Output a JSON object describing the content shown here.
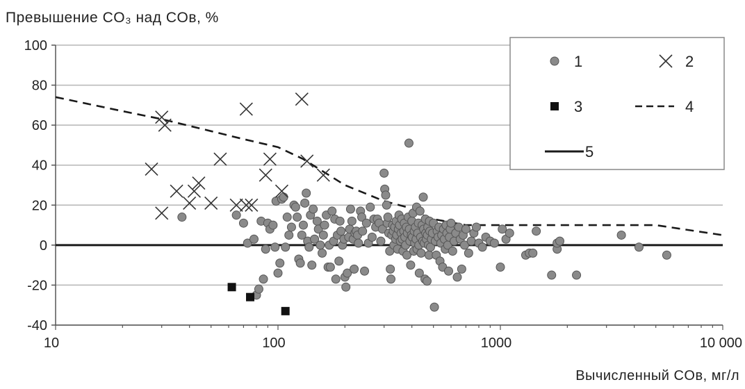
{
  "chart_data": {
    "type": "scatter",
    "title": "Превышение CO₃ над COв, %",
    "xlabel": "Вычисленный COв, мг/л",
    "ylabel": "Превышение CO₃ над COв, %",
    "xscale": "log",
    "xlim": [
      10,
      10000
    ],
    "ylim": [
      -40,
      100
    ],
    "x_tick_labels": [
      "10",
      "100",
      "1000",
      "10 000"
    ],
    "x_ticks": [
      10,
      100,
      1000,
      10000
    ],
    "y_ticks": [
      -40,
      -20,
      0,
      20,
      40,
      60,
      80,
      100
    ],
    "y_tick_labels": [
      "-40",
      "-20",
      "0",
      "20",
      "40",
      "60",
      "80",
      "100"
    ],
    "grid": "horizontal",
    "legend_position": "top-right",
    "legend": [
      {
        "key": "1",
        "label": "1",
        "marker": "circle"
      },
      {
        "key": "2",
        "label": "2",
        "marker": "x"
      },
      {
        "key": "3",
        "label": "3",
        "marker": "square"
      },
      {
        "key": "4",
        "label": "4",
        "marker": "dashed-line"
      },
      {
        "key": "5",
        "label": "5",
        "marker": "solid-line"
      }
    ],
    "colors": {
      "circle_fill": "#8a8a8a",
      "circle_stroke": "#555555",
      "square": "#111111",
      "line": "#1a1a1a",
      "grid": "#b5b5b5"
    },
    "series": [
      {
        "key": "1",
        "marker": "circle",
        "points": [
          [
            37,
            14
          ],
          [
            65,
            15
          ],
          [
            70,
            11
          ],
          [
            73,
            1
          ],
          [
            78,
            3
          ],
          [
            80,
            -25
          ],
          [
            82,
            -22
          ],
          [
            84,
            12
          ],
          [
            86,
            -17
          ],
          [
            88,
            -2
          ],
          [
            90,
            11
          ],
          [
            92,
            8
          ],
          [
            95,
            10
          ],
          [
            97,
            -1
          ],
          [
            98,
            22
          ],
          [
            100,
            -14
          ],
          [
            102,
            -9
          ],
          [
            104,
            23
          ],
          [
            106,
            24
          ],
          [
            108,
            -1
          ],
          [
            110,
            14
          ],
          [
            112,
            5
          ],
          [
            115,
            9
          ],
          [
            118,
            20
          ],
          [
            120,
            19
          ],
          [
            122,
            14
          ],
          [
            124,
            -7
          ],
          [
            126,
            -9
          ],
          [
            128,
            5
          ],
          [
            130,
            10
          ],
          [
            132,
            21
          ],
          [
            134,
            26
          ],
          [
            136,
            2
          ],
          [
            138,
            -1
          ],
          [
            140,
            15
          ],
          [
            142,
            -10
          ],
          [
            144,
            18
          ],
          [
            146,
            3
          ],
          [
            150,
            12
          ],
          [
            152,
            8
          ],
          [
            155,
            0
          ],
          [
            158,
            -4
          ],
          [
            160,
            5
          ],
          [
            162,
            10
          ],
          [
            165,
            15
          ],
          [
            168,
            -11
          ],
          [
            170,
            0
          ],
          [
            172,
            -11
          ],
          [
            175,
            17
          ],
          [
            178,
            2
          ],
          [
            180,
            13
          ],
          [
            182,
            -17
          ],
          [
            185,
            5
          ],
          [
            188,
            -8
          ],
          [
            190,
            12
          ],
          [
            192,
            7
          ],
          [
            195,
            0
          ],
          [
            198,
            3
          ],
          [
            200,
            -16
          ],
          [
            202,
            -21
          ],
          [
            205,
            -14
          ],
          [
            208,
            4
          ],
          [
            210,
            8
          ],
          [
            212,
            18
          ],
          [
            215,
            12
          ],
          [
            218,
            3
          ],
          [
            220,
            -12
          ],
          [
            222,
            6
          ],
          [
            225,
            7
          ],
          [
            228,
            5
          ],
          [
            230,
            1
          ],
          [
            235,
            17
          ],
          [
            238,
            14
          ],
          [
            240,
            7
          ],
          [
            245,
            -13
          ],
          [
            250,
            11
          ],
          [
            255,
            1
          ],
          [
            260,
            19
          ],
          [
            265,
            4
          ],
          [
            270,
            13
          ],
          [
            275,
            9
          ],
          [
            280,
            13
          ],
          [
            285,
            11
          ],
          [
            290,
            2
          ],
          [
            295,
            8
          ],
          [
            300,
            36
          ],
          [
            302,
            28
          ],
          [
            305,
            25
          ],
          [
            308,
            20
          ],
          [
            310,
            11
          ],
          [
            312,
            14
          ],
          [
            315,
            6
          ],
          [
            318,
            -3
          ],
          [
            320,
            -12
          ],
          [
            322,
            -17
          ],
          [
            325,
            5
          ],
          [
            328,
            10
          ],
          [
            330,
            7
          ],
          [
            332,
            0
          ],
          [
            335,
            9
          ],
          [
            338,
            3
          ],
          [
            340,
            12
          ],
          [
            342,
            5
          ],
          [
            345,
            -2
          ],
          [
            348,
            8
          ],
          [
            350,
            15
          ],
          [
            352,
            10
          ],
          [
            355,
            2
          ],
          [
            358,
            6
          ],
          [
            360,
            13
          ],
          [
            362,
            3
          ],
          [
            365,
            -3
          ],
          [
            368,
            7
          ],
          [
            370,
            11
          ],
          [
            372,
            4
          ],
          [
            375,
            0
          ],
          [
            378,
            9
          ],
          [
            380,
            -5
          ],
          [
            382,
            6
          ],
          [
            385,
            14
          ],
          [
            388,
            51
          ],
          [
            390,
            8
          ],
          [
            392,
            2
          ],
          [
            395,
            -10
          ],
          [
            398,
            5
          ],
          [
            400,
            12
          ],
          [
            402,
            4
          ],
          [
            405,
            16
          ],
          [
            408,
            -3
          ],
          [
            410,
            7
          ],
          [
            412,
            1
          ],
          [
            415,
            9
          ],
          [
            418,
            3
          ],
          [
            420,
            19
          ],
          [
            422,
            -2
          ],
          [
            425,
            6
          ],
          [
            428,
            11
          ],
          [
            430,
            0
          ],
          [
            432,
            -14
          ],
          [
            435,
            17
          ],
          [
            438,
            4
          ],
          [
            440,
            -4
          ],
          [
            445,
            10
          ],
          [
            448,
            2
          ],
          [
            450,
            24
          ],
          [
            452,
            8
          ],
          [
            455,
            1
          ],
          [
            458,
            -17
          ],
          [
            460,
            13
          ],
          [
            462,
            6
          ],
          [
            465,
            3
          ],
          [
            468,
            -18
          ],
          [
            470,
            5
          ],
          [
            472,
            9
          ],
          [
            475,
            0
          ],
          [
            478,
            -5
          ],
          [
            480,
            12
          ],
          [
            482,
            7
          ],
          [
            485,
            -1
          ],
          [
            490,
            3
          ],
          [
            495,
            6
          ],
          [
            500,
            11
          ],
          [
            505,
            -31
          ],
          [
            510,
            2
          ],
          [
            515,
            -5
          ],
          [
            520,
            7
          ],
          [
            525,
            4
          ],
          [
            530,
            9
          ],
          [
            535,
            -8
          ],
          [
            540,
            1
          ],
          [
            545,
            5
          ],
          [
            550,
            -11
          ],
          [
            555,
            8
          ],
          [
            560,
            3
          ],
          [
            565,
            -2
          ],
          [
            570,
            10
          ],
          [
            575,
            6
          ],
          [
            580,
            0
          ],
          [
            585,
            -13
          ],
          [
            590,
            4
          ],
          [
            595,
            8
          ],
          [
            600,
            11
          ],
          [
            610,
            -3
          ],
          [
            620,
            2
          ],
          [
            630,
            6
          ],
          [
            640,
            -16
          ],
          [
            650,
            9
          ],
          [
            660,
            3
          ],
          [
            670,
            -12
          ],
          [
            680,
            5
          ],
          [
            690,
            0
          ],
          [
            700,
            8
          ],
          [
            720,
            -4
          ],
          [
            740,
            2
          ],
          [
            760,
            6
          ],
          [
            780,
            9
          ],
          [
            800,
            1
          ],
          [
            830,
            -1
          ],
          [
            860,
            4
          ],
          [
            900,
            2
          ],
          [
            940,
            1
          ],
          [
            1000,
            -11
          ],
          [
            1020,
            8
          ],
          [
            1060,
            3
          ],
          [
            1100,
            6
          ],
          [
            1300,
            -5
          ],
          [
            1350,
            -4
          ],
          [
            1400,
            -4
          ],
          [
            1450,
            7
          ],
          [
            1700,
            -15
          ],
          [
            1800,
            -2
          ],
          [
            1800,
            1
          ],
          [
            1850,
            2
          ],
          [
            2200,
            -15
          ],
          [
            3500,
            5
          ],
          [
            4200,
            -1
          ],
          [
            5600,
            -5
          ]
        ]
      },
      {
        "key": "2",
        "marker": "x",
        "points": [
          [
            27,
            38
          ],
          [
            30,
            16
          ],
          [
            30,
            64
          ],
          [
            31,
            60
          ],
          [
            35,
            27
          ],
          [
            40,
            21
          ],
          [
            42,
            27
          ],
          [
            44,
            31
          ],
          [
            50,
            21
          ],
          [
            55,
            43
          ],
          [
            65,
            20
          ],
          [
            72,
            68
          ],
          [
            72,
            20
          ],
          [
            76,
            20
          ],
          [
            88,
            35
          ],
          [
            92,
            43
          ],
          [
            104,
            27
          ],
          [
            128,
            73
          ],
          [
            135,
            42
          ],
          [
            160,
            35
          ]
        ]
      },
      {
        "key": "3",
        "marker": "square",
        "points": [
          [
            62,
            -21
          ],
          [
            75,
            -26
          ],
          [
            108,
            -33
          ]
        ]
      },
      {
        "key": "4",
        "marker": "dashed-line",
        "points": [
          [
            10,
            74
          ],
          [
            20,
            67
          ],
          [
            30,
            63
          ],
          [
            50,
            57
          ],
          [
            70,
            53
          ],
          [
            100,
            49
          ],
          [
            130,
            43
          ],
          [
            200,
            30
          ],
          [
            300,
            22
          ],
          [
            380,
            19
          ],
          [
            400,
            17
          ],
          [
            500,
            13
          ],
          [
            700,
            10
          ],
          [
            1000,
            10
          ],
          [
            2000,
            10
          ],
          [
            5000,
            10
          ],
          [
            10000,
            5
          ]
        ]
      },
      {
        "key": "5",
        "marker": "solid-line",
        "points": [
          [
            10,
            0
          ],
          [
            10000,
            0
          ]
        ]
      }
    ]
  }
}
